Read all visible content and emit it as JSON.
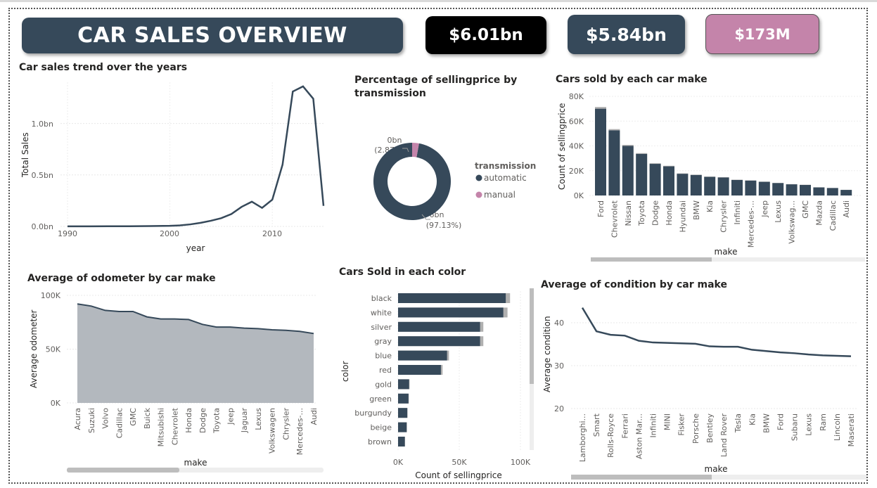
{
  "header": {
    "title": "CAR SALES OVERVIEW"
  },
  "kpis": [
    {
      "value": "$6.01bn"
    },
    {
      "value": "$5.84bn"
    },
    {
      "value": "$173M"
    }
  ],
  "colors": {
    "primary": "#36495a",
    "accent": "#c484aa",
    "area": "#b3b8be",
    "grey_bar": "#b0b0b0"
  },
  "trend": {
    "title": "Car sales trend over the years",
    "xlabel": "year",
    "ylabel": "Total Sales",
    "x_ticks": [
      "1990",
      "2000",
      "2010"
    ],
    "y_ticks": [
      "0.0bn",
      "0.5bn",
      "1.0bn"
    ]
  },
  "transmission": {
    "title_line1": "Percentage of sellingprice by",
    "title_line2": "transmission",
    "legend_title": "transmission",
    "label_manual_line1": "0bn",
    "label_manual_line2": "(2.87%)",
    "label_auto_line1": "6bn",
    "label_auto_line2": "(97.13%)"
  },
  "make_sold": {
    "title": "Cars sold by each car make",
    "xlabel": "make",
    "ylabel": "Count of sellingprice",
    "y_ticks": [
      "0K",
      "20K",
      "40K",
      "60K",
      "80K"
    ]
  },
  "odometer": {
    "title": "Average of odometer by car make",
    "xlabel": "make",
    "ylabel": "Average odometer",
    "y_ticks": [
      "0K",
      "50K",
      "100K"
    ]
  },
  "color_sold": {
    "title": "Cars Sold in each color",
    "xlabel": "Count of sellingprice",
    "ylabel": "color",
    "x_ticks": [
      "0K",
      "50K",
      "100K"
    ]
  },
  "condition": {
    "title": "Average of condition by car make",
    "xlabel": "make",
    "ylabel": "Average condition",
    "y_ticks": [
      "20",
      "30",
      "40"
    ]
  },
  "chart_data": [
    {
      "type": "line",
      "x": [
        1990,
        1992,
        1994,
        1996,
        1998,
        2000,
        2001,
        2002,
        2003,
        2004,
        2005,
        2006,
        2007,
        2008,
        2009,
        2010,
        2011,
        2012,
        2013,
        2014,
        2015
      ],
      "series": [
        {
          "values": [
            0.001,
            0.001,
            0.002,
            0.002,
            0.003,
            0.006,
            0.01,
            0.02,
            0.035,
            0.055,
            0.08,
            0.12,
            0.19,
            0.24,
            0.18,
            0.26,
            0.6,
            1.31,
            1.36,
            1.24,
            0.2
          ]
        }
      ],
      "title": "Car sales trend over the years",
      "xlabel": "year",
      "ylabel": "Total Sales",
      "ylim": [
        0,
        1.4
      ],
      "xlim": [
        1990,
        2015
      ]
    },
    {
      "type": "pie",
      "categories": [
        "automatic",
        "manual"
      ],
      "values": [
        97.13,
        2.87
      ],
      "title": "Percentage of sellingprice by transmission"
    },
    {
      "type": "bar",
      "categories": [
        "Ford",
        "Chevrolet",
        "Nissan",
        "Toyota",
        "Dodge",
        "Honda",
        "Hyundai",
        "BMW",
        "Kia",
        "Chrysler",
        "Infiniti",
        "Mercedes-...",
        "Jeep",
        "Lexus",
        "Volkswag...",
        "GMC",
        "Mazda",
        "Cadillac",
        "Audi"
      ],
      "values": [
        70000,
        52500,
        40000,
        33500,
        25500,
        23500,
        17500,
        16500,
        15000,
        14500,
        12500,
        12000,
        11000,
        10000,
        9000,
        8500,
        6500,
        6000,
        4500
      ],
      "title": "Cars sold by each car make",
      "xlabel": "make",
      "ylabel": "Count of sellingprice",
      "ylim": [
        0,
        80000
      ]
    },
    {
      "type": "area",
      "categories": [
        "Acura",
        "Suzuki",
        "Volvo",
        "Cadillac",
        "GMC",
        "Buick",
        "Mitsubishi",
        "Chevrolet",
        "Honda",
        "Dodge",
        "Toyota",
        "Jeep",
        "Jaguar",
        "Lexus",
        "Volkswagen",
        "Chrysler",
        "Mercedes-...",
        "Audi"
      ],
      "values": [
        92000,
        90000,
        86000,
        85000,
        85000,
        80000,
        78000,
        78000,
        77500,
        73000,
        70500,
        70500,
        69500,
        69000,
        68000,
        67500,
        66500,
        64500
      ],
      "title": "Average of odometer by car make",
      "xlabel": "make",
      "ylabel": "Average odometer",
      "ylim": [
        0,
        100000
      ]
    },
    {
      "type": "bar",
      "orientation": "horizontal",
      "categories": [
        "black",
        "white",
        "silver",
        "gray",
        "blue",
        "red",
        "gold",
        "green",
        "burgundy",
        "beige",
        "brown"
      ],
      "values": [
        88000,
        86000,
        67000,
        67000,
        40000,
        35000,
        9000,
        8500,
        7500,
        7000,
        5500
      ],
      "title": "Cars Sold in each color",
      "xlabel": "Count of sellingprice",
      "ylabel": "color",
      "xlim": [
        0,
        100000
      ]
    },
    {
      "type": "line",
      "categories": [
        "Lamborghi...",
        "Smart",
        "Rolls-Royce",
        "Ferrari",
        "Aston Mar...",
        "Infiniti",
        "MINI",
        "Fisker",
        "Porsche",
        "Bentley",
        "Land Rover",
        "Tesla",
        "Kia",
        "BMW",
        "Ford",
        "Subaru",
        "Lexus",
        "Ram",
        "Lincoln",
        "Maserati"
      ],
      "values": [
        43.5,
        38,
        37.2,
        37,
        35.8,
        35.4,
        35.3,
        35.2,
        35.1,
        34.5,
        34.4,
        34.4,
        33.7,
        33.4,
        33.1,
        32.9,
        32.6,
        32.4,
        32.3,
        32.2
      ],
      "title": "Average of condition by car make",
      "xlabel": "make",
      "ylabel": "Average condition",
      "ylim": [
        20,
        45
      ]
    }
  ]
}
